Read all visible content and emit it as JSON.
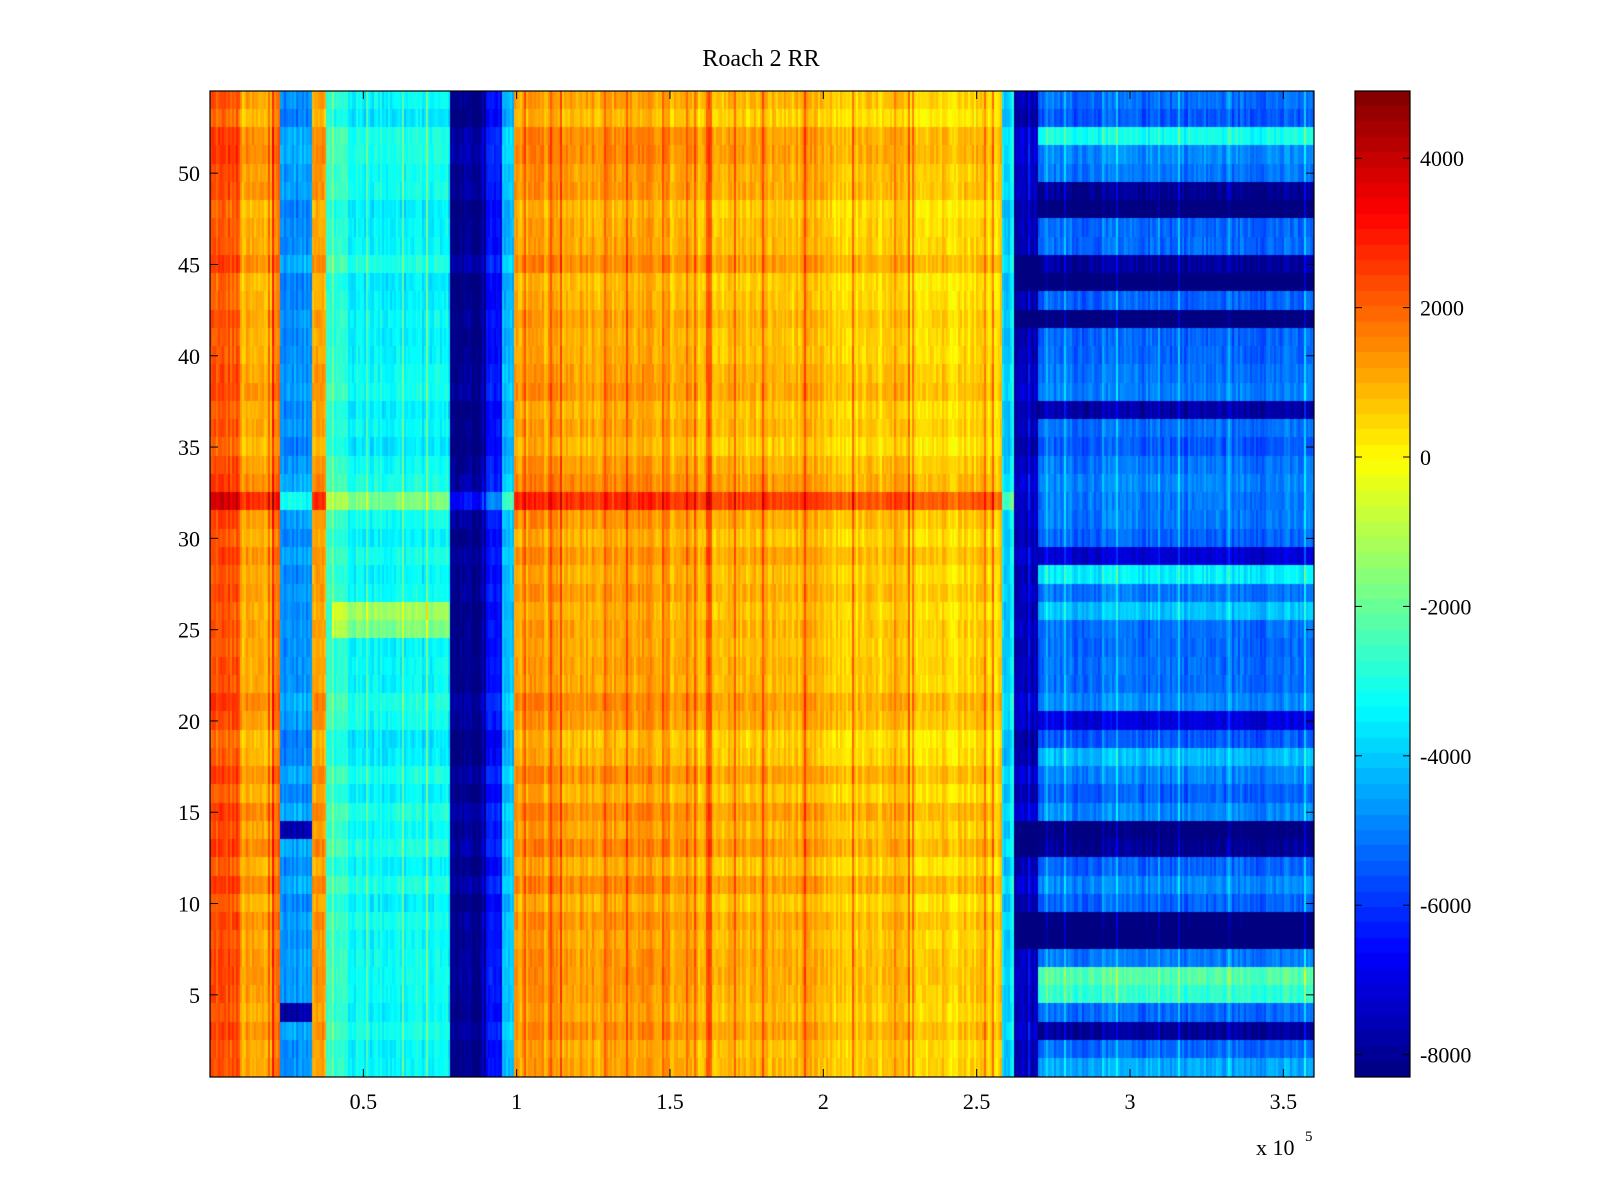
{
  "chart_data": {
    "type": "heatmap",
    "title": "Roach 2 RR",
    "xlabel": "",
    "ylabel": "",
    "x_multiplier_label": "x 10",
    "x_multiplier_exponent": "5",
    "xlim": [
      0,
      360000
    ],
    "ylim": [
      0.5,
      54.5
    ],
    "x_ticks": [
      {
        "value": 50000,
        "label": "0.5"
      },
      {
        "value": 100000,
        "label": "1"
      },
      {
        "value": 150000,
        "label": "1.5"
      },
      {
        "value": 200000,
        "label": "2"
      },
      {
        "value": 250000,
        "label": "2.5"
      },
      {
        "value": 300000,
        "label": "3"
      },
      {
        "value": 350000,
        "label": "3.5"
      }
    ],
    "y_ticks": [
      {
        "value": 5,
        "label": "5"
      },
      {
        "value": 10,
        "label": "10"
      },
      {
        "value": 15,
        "label": "15"
      },
      {
        "value": 20,
        "label": "20"
      },
      {
        "value": 25,
        "label": "25"
      },
      {
        "value": 30,
        "label": "30"
      },
      {
        "value": 35,
        "label": "35"
      },
      {
        "value": 40,
        "label": "40"
      },
      {
        "value": 45,
        "label": "45"
      },
      {
        "value": 50,
        "label": "50"
      }
    ],
    "colorbar": {
      "colormap": "jet",
      "clim": [
        -8300,
        4900
      ],
      "ticks": [
        {
          "value": 4000,
          "label": "4000"
        },
        {
          "value": 2000,
          "label": "2000"
        },
        {
          "value": 0,
          "label": "0"
        },
        {
          "value": -2000,
          "label": "-2000"
        },
        {
          "value": -4000,
          "label": "-4000"
        },
        {
          "value": -6000,
          "label": "-6000"
        },
        {
          "value": -8000,
          "label": "-8000"
        }
      ]
    },
    "rows": 54,
    "column_profile": [
      {
        "x0": 0,
        "x1": 10000,
        "value": 2200
      },
      {
        "x0": 10000,
        "x1": 20000,
        "value": 1000
      },
      {
        "x0": 20000,
        "x1": 23000,
        "value": 1700
      },
      {
        "x0": 23000,
        "x1": 33000,
        "value": -4700
      },
      {
        "x0": 33000,
        "x1": 38000,
        "value": 1400
      },
      {
        "x0": 38000,
        "x1": 45000,
        "value": -2800
      },
      {
        "x0": 45000,
        "x1": 78000,
        "value": -3300
      },
      {
        "x0": 78000,
        "x1": 90000,
        "value": -8100
      },
      {
        "x0": 90000,
        "x1": 95000,
        "value": -6500
      },
      {
        "x0": 95000,
        "x1": 99000,
        "value": -4200
      },
      {
        "x0": 99000,
        "x1": 150000,
        "value": 1200
      },
      {
        "x0": 150000,
        "x1": 200000,
        "value": 900
      },
      {
        "x0": 200000,
        "x1": 258000,
        "value": 600
      },
      {
        "x0": 258000,
        "x1": 262000,
        "value": -3800
      },
      {
        "x0": 262000,
        "x1": 270000,
        "value": -7600
      },
      {
        "x0": 270000,
        "x1": 360000,
        "value": -5200
      }
    ],
    "row_offsets": [
      {
        "y": 32,
        "x0": 0,
        "x1": 262000,
        "delta": 1400
      },
      {
        "y": 26,
        "x0": 40000,
        "x1": 78000,
        "delta": 2200
      },
      {
        "y": 25,
        "x0": 40000,
        "x1": 78000,
        "delta": 1600
      },
      {
        "y": 14,
        "x0": 23000,
        "x1": 33000,
        "delta": -3000
      },
      {
        "y": 4,
        "x0": 23000,
        "x1": 33000,
        "delta": -3000
      },
      {
        "y": 1,
        "x0": 270000,
        "x1": 360000,
        "delta": 800
      },
      {
        "y": 3,
        "x0": 270000,
        "x1": 360000,
        "delta": -3000
      },
      {
        "y": 5,
        "x0": 270000,
        "x1": 360000,
        "delta": 2400
      },
      {
        "y": 6,
        "x0": 270000,
        "x1": 360000,
        "delta": 2800
      },
      {
        "y": 8,
        "x0": 262000,
        "x1": 360000,
        "delta": -3500
      },
      {
        "y": 9,
        "x0": 262000,
        "x1": 360000,
        "delta": -3500
      },
      {
        "y": 13,
        "x0": 262000,
        "x1": 360000,
        "delta": -3200
      },
      {
        "y": 14,
        "x0": 262000,
        "x1": 360000,
        "delta": -3200
      },
      {
        "y": 18,
        "x0": 270000,
        "x1": 360000,
        "delta": 1200
      },
      {
        "y": 20,
        "x0": 270000,
        "x1": 360000,
        "delta": -2000
      },
      {
        "y": 26,
        "x0": 270000,
        "x1": 360000,
        "delta": 1300
      },
      {
        "y": 28,
        "x0": 270000,
        "x1": 360000,
        "delta": 1800
      },
      {
        "y": 29,
        "x0": 270000,
        "x1": 360000,
        "delta": -2200
      },
      {
        "y": 37,
        "x0": 270000,
        "x1": 360000,
        "delta": -2400
      },
      {
        "y": 42,
        "x0": 262000,
        "x1": 360000,
        "delta": -3400
      },
      {
        "y": 44,
        "x0": 262000,
        "x1": 360000,
        "delta": -3400
      },
      {
        "y": 45,
        "x0": 262000,
        "x1": 360000,
        "delta": -3000
      },
      {
        "y": 48,
        "x0": 270000,
        "x1": 360000,
        "delta": -3200
      },
      {
        "y": 49,
        "x0": 270000,
        "x1": 360000,
        "delta": -3000
      },
      {
        "y": 52,
        "x0": 270000,
        "x1": 360000,
        "delta": 1800
      }
    ]
  }
}
